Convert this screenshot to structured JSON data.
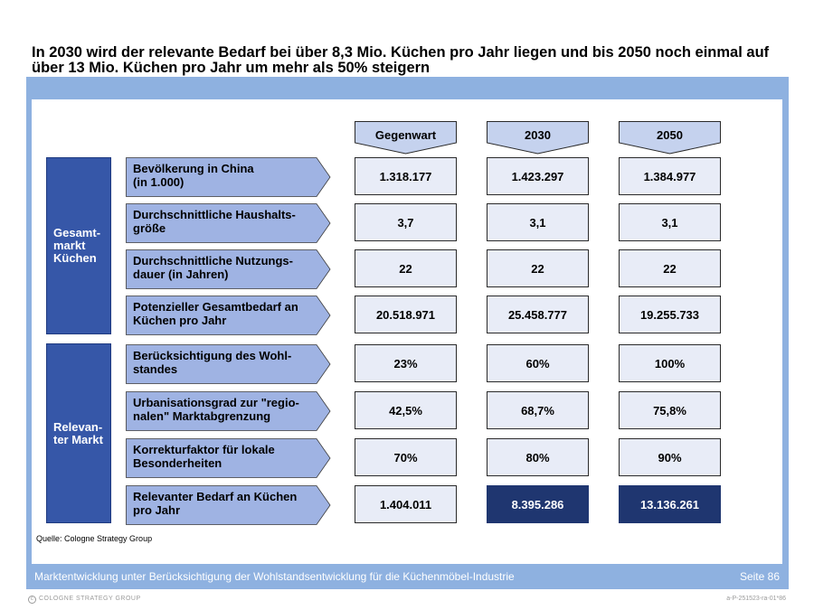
{
  "title": "In 2030 wird der relevante Bedarf bei über 8,3 Mio. Küchen pro Jahr liegen und bis 2050 noch einmal auf über 13 Mio. Küchen pro Jahr um mehr als 50% steigern",
  "columns": [
    "Gegenwart",
    "2030",
    "2050"
  ],
  "groups": [
    {
      "label": "Gesamt-\nmarkt\nKüchen"
    },
    {
      "label": "Relevan-\nter Markt"
    }
  ],
  "rows": [
    {
      "label": "Bevölkerung in China\n(in 1.000)",
      "values": [
        "1.318.177",
        "1.423.297",
        "1.384.977"
      ]
    },
    {
      "label": "Durchschnittliche Haushalts-\ngröße",
      "values": [
        "3,7",
        "3,1",
        "3,1"
      ]
    },
    {
      "label": "Durchschnittliche Nutzungs-\ndauer (in Jahren)",
      "values": [
        "22",
        "22",
        "22"
      ]
    },
    {
      "label": "Potenzieller Gesamtbedarf an\nKüchen pro Jahr",
      "values": [
        "20.518.971",
        "25.458.777",
        "19.255.733"
      ]
    },
    {
      "label": "Berücksichtigung des Wohl-\nstandes",
      "values": [
        "23%",
        "60%",
        "100%"
      ]
    },
    {
      "label": "Urbanisationsgrad zur \"regio-\nnalen\" Marktabgrenzung",
      "values": [
        "42,5%",
        "68,7%",
        "75,8%"
      ]
    },
    {
      "label": "Korrekturfaktor für lokale\nBesonderheiten",
      "values": [
        "70%",
        "80%",
        "90%"
      ]
    },
    {
      "label": "Relevanter Bedarf an Küchen\npro Jahr",
      "values": [
        "1.404.011",
        "8.395.286",
        "13.136.261"
      ]
    }
  ],
  "source": "Quelle: Cologne Strategy Group",
  "footer": "Marktentwicklung unter Berücksichtigung der Wohlstandsentwicklung für die Küchenmöbel-Industrie",
  "page": "Seite 86",
  "copyright": "COLOGNE STRATEGY GROUP",
  "reference": "a-P-251523-ra-01*86",
  "colors": {
    "frame": "#8eb1e0",
    "group_box": "#3657a8",
    "label_arrow": "#9fb3e3",
    "header_fill": "#c5d2ee",
    "cell_fill": "#e8ecf7",
    "highlight": "#1f3670"
  }
}
